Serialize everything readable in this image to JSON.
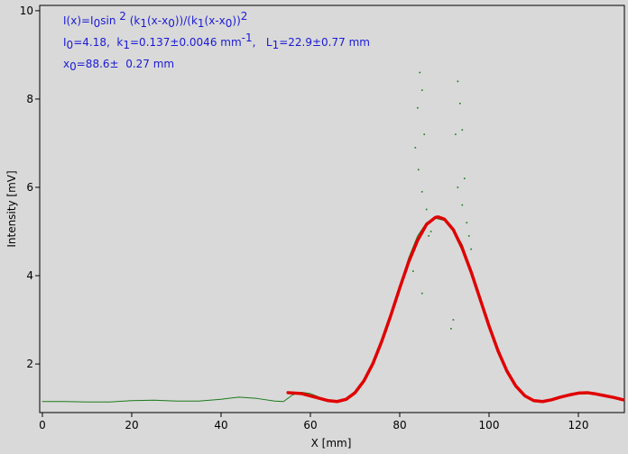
{
  "chart_data": {
    "type": "line",
    "x_label": "X [mm]",
    "y_label": "Intensity [mV]",
    "xlim": [
      -0.6,
      130.3
    ],
    "ylim": [
      0.9,
      10.12
    ],
    "xticks": [
      0,
      20,
      40,
      60,
      80,
      100,
      120
    ],
    "yticks": [
      2,
      4,
      6,
      8,
      10
    ],
    "annotations": [
      [
        {
          "text": "I(x)=I"
        },
        {
          "text": "0",
          "script": "sub"
        },
        {
          "text": "sin "
        },
        {
          "text": "2",
          "script": "sup"
        },
        {
          "text": " (k"
        },
        {
          "text": "1",
          "script": "sub"
        },
        {
          "text": "(x-x"
        },
        {
          "text": "0",
          "script": "sub"
        },
        {
          "text": "))/(k"
        },
        {
          "text": "1",
          "script": "sub"
        },
        {
          "text": "(x-x"
        },
        {
          "text": "0",
          "script": "sub"
        },
        {
          "text": "))"
        },
        {
          "text": "2",
          "script": "sup"
        }
      ],
      [
        {
          "text": "I"
        },
        {
          "text": "0",
          "script": "sub"
        },
        {
          "text": "=4.18,  k"
        },
        {
          "text": "1",
          "script": "sub"
        },
        {
          "text": "=0.137±0.0046 mm"
        },
        {
          "text": "-1",
          "script": "sup"
        },
        {
          "text": ",   L"
        },
        {
          "text": "1",
          "script": "sub"
        },
        {
          "text": "=22.9±0.77 mm"
        }
      ],
      [
        {
          "text": "x"
        },
        {
          "text": "0",
          "script": "sub"
        },
        {
          "text": "=88.6±  0.27 mm"
        }
      ]
    ],
    "series": [
      {
        "color": "#1a7a1a",
        "width": 1,
        "x": [
          0,
          5,
          10,
          15,
          20,
          25,
          30,
          35,
          40,
          44,
          48,
          52,
          54,
          56,
          58,
          60,
          62,
          64,
          66,
          68,
          70,
          72,
          74,
          76,
          78,
          80,
          82,
          84,
          86,
          88,
          90,
          92,
          94,
          96,
          98,
          100,
          102,
          104,
          106,
          108,
          110,
          112,
          114,
          116,
          118,
          120,
          122,
          124,
          126,
          128,
          130
        ],
        "values": [
          1.15,
          1.15,
          1.14,
          1.14,
          1.17,
          1.18,
          1.16,
          1.16,
          1.2,
          1.25,
          1.22,
          1.16,
          1.15,
          1.3,
          1.36,
          1.33,
          1.25,
          1.18,
          1.15,
          1.18,
          1.32,
          1.6,
          2.0,
          2.5,
          3.1,
          3.75,
          4.4,
          4.9,
          5.2,
          5.3,
          5.25,
          5.05,
          4.7,
          4.1,
          3.5,
          2.85,
          2.3,
          1.85,
          1.5,
          1.28,
          1.17,
          1.15,
          1.19,
          1.25,
          1.3,
          1.34,
          1.35,
          1.32,
          1.28,
          1.24,
          1.2
        ]
      },
      {
        "color": "#e00000",
        "width": 3.5,
        "x": [
          55,
          58,
          61,
          64,
          66,
          68,
          70,
          72,
          74,
          76,
          78,
          80,
          82,
          84,
          86,
          88,
          88.6,
          90,
          92,
          94,
          96,
          98,
          100,
          102,
          104,
          106,
          108,
          110,
          112,
          114,
          116,
          118,
          120,
          122,
          124,
          126,
          128,
          130
        ],
        "values": [
          1.35,
          1.33,
          1.25,
          1.17,
          1.15,
          1.2,
          1.35,
          1.62,
          2.01,
          2.52,
          3.1,
          3.72,
          4.31,
          4.8,
          5.16,
          5.32,
          5.33,
          5.28,
          5.04,
          4.62,
          4.08,
          3.47,
          2.86,
          2.3,
          1.84,
          1.5,
          1.28,
          1.17,
          1.15,
          1.19,
          1.25,
          1.3,
          1.34,
          1.35,
          1.32,
          1.28,
          1.24,
          1.19
        ]
      },
      {
        "color": "#1a7a1a",
        "kind": "scatter",
        "x": [
          84.5,
          85,
          84,
          85.5,
          83.5,
          84.2,
          85,
          86,
          85,
          83,
          93,
          93.5,
          94,
          92.5,
          94.5,
          93,
          95,
          92,
          91.5,
          94,
          86.5,
          87,
          96,
          95.5
        ],
        "values": [
          8.6,
          8.2,
          7.8,
          7.2,
          6.9,
          6.4,
          5.9,
          5.5,
          3.6,
          4.1,
          8.4,
          7.9,
          7.3,
          7.2,
          6.2,
          6.0,
          5.2,
          3.0,
          2.8,
          5.6,
          4.9,
          5.0,
          4.6,
          4.9
        ]
      }
    ]
  }
}
